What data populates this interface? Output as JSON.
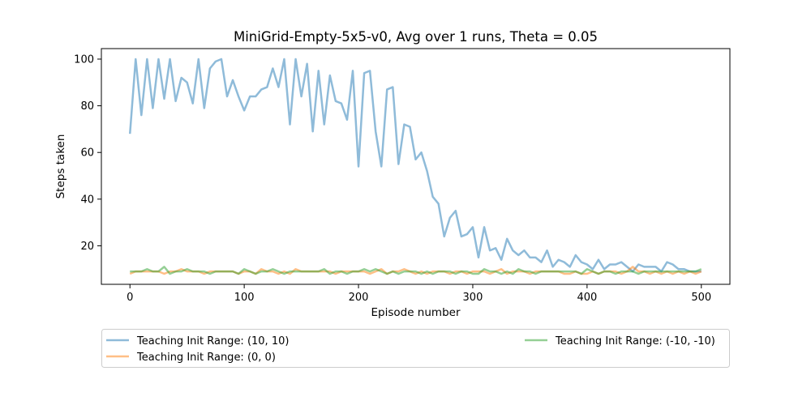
{
  "chart_data": {
    "type": "line",
    "title": "MiniGrid-Empty-5x5-v0, Avg over 1 runs, Theta = 0.05",
    "xlabel": "Episode number",
    "ylabel": "Steps taken",
    "xlim": [
      -25,
      525
    ],
    "ylim": [
      3.5,
      104.5
    ],
    "xticks": [
      0,
      100,
      200,
      300,
      400,
      500
    ],
    "yticks": [
      20,
      40,
      60,
      80,
      100
    ],
    "grid": false,
    "legend_position": "below",
    "series": [
      {
        "name": "Teaching Init Range: (10, 10)",
        "color": "#1f77b4",
        "x": [
          0,
          5,
          10,
          15,
          20,
          25,
          30,
          35,
          40,
          45,
          50,
          55,
          60,
          65,
          70,
          75,
          80,
          85,
          90,
          95,
          100,
          105,
          110,
          115,
          120,
          125,
          130,
          135,
          140,
          145,
          150,
          155,
          160,
          165,
          170,
          175,
          180,
          185,
          190,
          195,
          200,
          205,
          210,
          215,
          220,
          225,
          230,
          235,
          240,
          245,
          250,
          255,
          260,
          265,
          270,
          275,
          280,
          285,
          290,
          295,
          300,
          305,
          310,
          315,
          320,
          325,
          330,
          335,
          340,
          345,
          350,
          355,
          360,
          365,
          370,
          375,
          380,
          385,
          390,
          395,
          400,
          405,
          410,
          415,
          420,
          425,
          430,
          435,
          440,
          445,
          450,
          455,
          460,
          465,
          470,
          475,
          480,
          485,
          490,
          495,
          500
        ],
        "values": [
          68,
          100,
          76,
          100,
          79,
          100,
          83,
          100,
          82,
          92,
          90,
          81,
          100,
          79,
          96,
          99,
          100,
          84,
          91,
          84,
          78,
          84,
          84,
          87,
          88,
          96,
          88,
          100,
          72,
          100,
          84,
          98,
          69,
          95,
          72,
          93,
          82,
          81,
          74,
          95,
          54,
          94,
          95,
          69,
          54,
          87,
          88,
          55,
          72,
          71,
          57,
          60,
          52,
          41,
          38,
          24,
          32,
          35,
          24,
          25,
          28,
          15,
          28,
          18,
          19,
          14,
          23,
          18,
          16,
          18,
          15,
          15,
          13,
          18,
          11,
          14,
          13,
          11,
          16,
          13,
          12,
          10,
          14,
          10,
          12,
          12,
          13,
          11,
          9,
          12,
          11,
          11,
          11,
          9,
          13,
          12,
          10,
          10,
          9,
          9,
          9
        ]
      },
      {
        "name": "Teaching Init Range: (0, 0)",
        "color": "#ff7f0e",
        "x": [
          0,
          5,
          10,
          15,
          20,
          25,
          30,
          35,
          40,
          45,
          50,
          55,
          60,
          65,
          70,
          75,
          80,
          85,
          90,
          95,
          100,
          105,
          110,
          115,
          120,
          125,
          130,
          135,
          140,
          145,
          150,
          155,
          160,
          165,
          170,
          175,
          180,
          185,
          190,
          195,
          200,
          205,
          210,
          215,
          220,
          225,
          230,
          235,
          240,
          245,
          250,
          255,
          260,
          265,
          270,
          275,
          280,
          285,
          290,
          295,
          300,
          305,
          310,
          315,
          320,
          325,
          330,
          335,
          340,
          345,
          350,
          355,
          360,
          365,
          370,
          375,
          380,
          385,
          390,
          395,
          400,
          405,
          410,
          415,
          420,
          425,
          430,
          435,
          440,
          445,
          450,
          455,
          460,
          465,
          470,
          475,
          480,
          485,
          490,
          495,
          500
        ],
        "values": [
          8,
          9,
          9,
          9,
          9,
          9,
          8,
          9,
          9,
          10,
          9,
          9,
          9,
          8,
          9,
          9,
          9,
          9,
          9,
          8,
          9,
          9,
          8,
          10,
          9,
          9,
          8,
          9,
          8,
          10,
          9,
          9,
          9,
          9,
          9,
          9,
          8,
          9,
          9,
          9,
          9,
          9,
          8,
          9,
          10,
          8,
          9,
          9,
          10,
          9,
          8,
          9,
          8,
          9,
          9,
          9,
          8,
          9,
          9,
          8,
          9,
          9,
          9,
          8,
          9,
          10,
          8,
          9,
          9,
          9,
          8,
          9,
          9,
          9,
          9,
          9,
          8,
          8,
          9,
          8,
          8,
          9,
          8,
          9,
          9,
          9,
          8,
          9,
          11,
          9,
          9,
          8,
          9,
          8,
          9,
          8,
          9,
          8,
          9,
          8,
          9
        ]
      },
      {
        "name": "Teaching Init Range: (-10, -10)",
        "color": "#2ca02c",
        "x": [
          0,
          5,
          10,
          15,
          20,
          25,
          30,
          35,
          40,
          45,
          50,
          55,
          60,
          65,
          70,
          75,
          80,
          85,
          90,
          95,
          100,
          105,
          110,
          115,
          120,
          125,
          130,
          135,
          140,
          145,
          150,
          155,
          160,
          165,
          170,
          175,
          180,
          185,
          190,
          195,
          200,
          205,
          210,
          215,
          220,
          225,
          230,
          235,
          240,
          245,
          250,
          255,
          260,
          265,
          270,
          275,
          280,
          285,
          290,
          295,
          300,
          305,
          310,
          315,
          320,
          325,
          330,
          335,
          340,
          345,
          350,
          355,
          360,
          365,
          370,
          375,
          380,
          385,
          390,
          395,
          400,
          405,
          410,
          415,
          420,
          425,
          430,
          435,
          440,
          445,
          450,
          455,
          460,
          465,
          470,
          475,
          480,
          485,
          490,
          495,
          500
        ],
        "values": [
          9,
          9,
          9,
          10,
          9,
          9,
          11,
          8,
          9,
          9,
          10,
          9,
          9,
          9,
          8,
          9,
          9,
          9,
          9,
          8,
          10,
          9,
          8,
          9,
          9,
          10,
          9,
          8,
          9,
          9,
          9,
          9,
          9,
          9,
          10,
          8,
          9,
          9,
          8,
          9,
          9,
          10,
          9,
          10,
          9,
          8,
          9,
          8,
          9,
          9,
          9,
          8,
          9,
          8,
          9,
          9,
          9,
          8,
          9,
          9,
          8,
          8,
          10,
          9,
          9,
          8,
          9,
          8,
          10,
          9,
          9,
          8,
          9,
          9,
          9,
          9,
          9,
          9,
          9,
          8,
          10,
          9,
          8,
          9,
          9,
          8,
          9,
          9,
          9,
          8,
          9,
          9,
          9,
          9,
          9,
          9,
          9,
          9,
          9,
          9,
          10
        ]
      }
    ]
  }
}
